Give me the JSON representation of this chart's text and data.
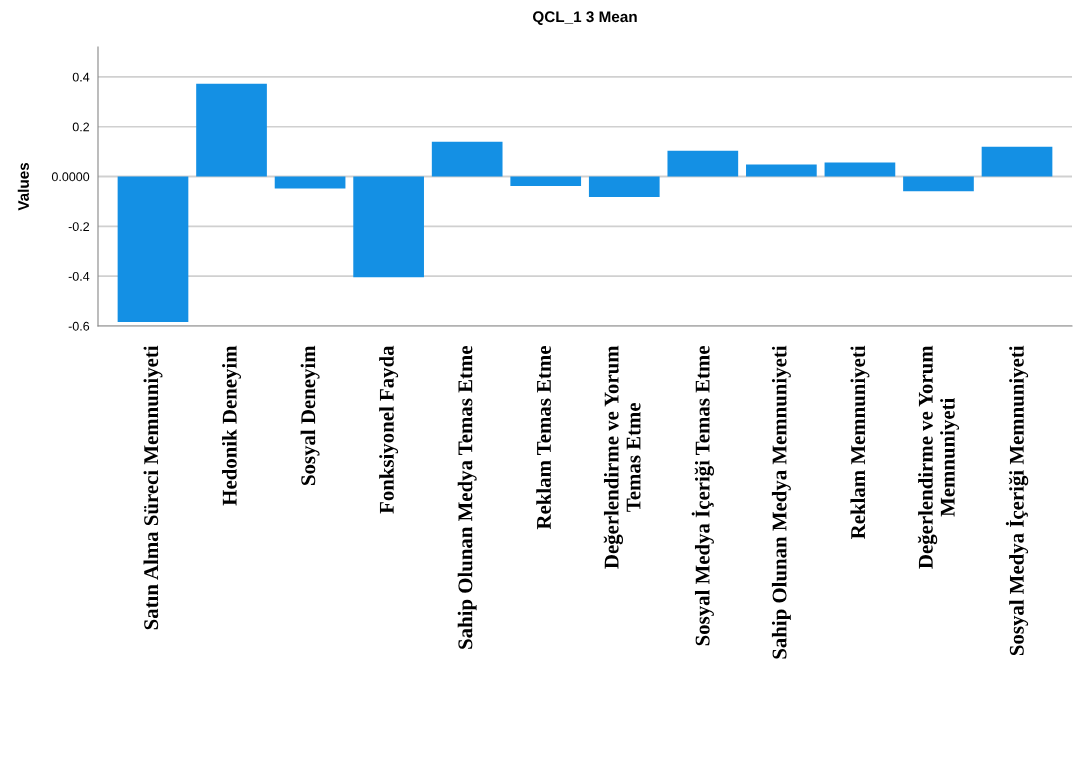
{
  "chart_data": {
    "type": "bar",
    "title": "QCL_1 3 Mean",
    "ylabel": "Values",
    "categories": [
      "Satın Alma Süreci Memnuniyeti",
      "Hedonik Deneyim",
      "Sosyal Deneyim",
      "Fonksiyonel Fayda",
      "Sahip Olunan Medya Temas Etme",
      "Reklam Temas Etme",
      "Değerlendirme ve Yorum\nTemas Etme",
      "Sosyal Medya İçeriği Temas Etme",
      "Sahip Olunan Medya Memnuniyeti",
      "Reklam Memnuniyeti",
      "Değerlendirme ve Yorum\nMemnuniyeti",
      "Sosyal Medya İçeriği Memnuniyeti"
    ],
    "values": [
      -0.584,
      0.372,
      -0.048,
      -0.404,
      0.14,
      -0.038,
      -0.082,
      0.104,
      0.048,
      0.056,
      -0.059,
      0.12
    ],
    "color": "#1490e4",
    "ylim": [
      -0.6,
      0.52
    ],
    "yticks": [
      -0.6,
      -0.4,
      -0.2,
      {
        "value": 0,
        "label": "0.0000"
      },
      0.2,
      0.4
    ],
    "grid": "y",
    "legend": false
  }
}
